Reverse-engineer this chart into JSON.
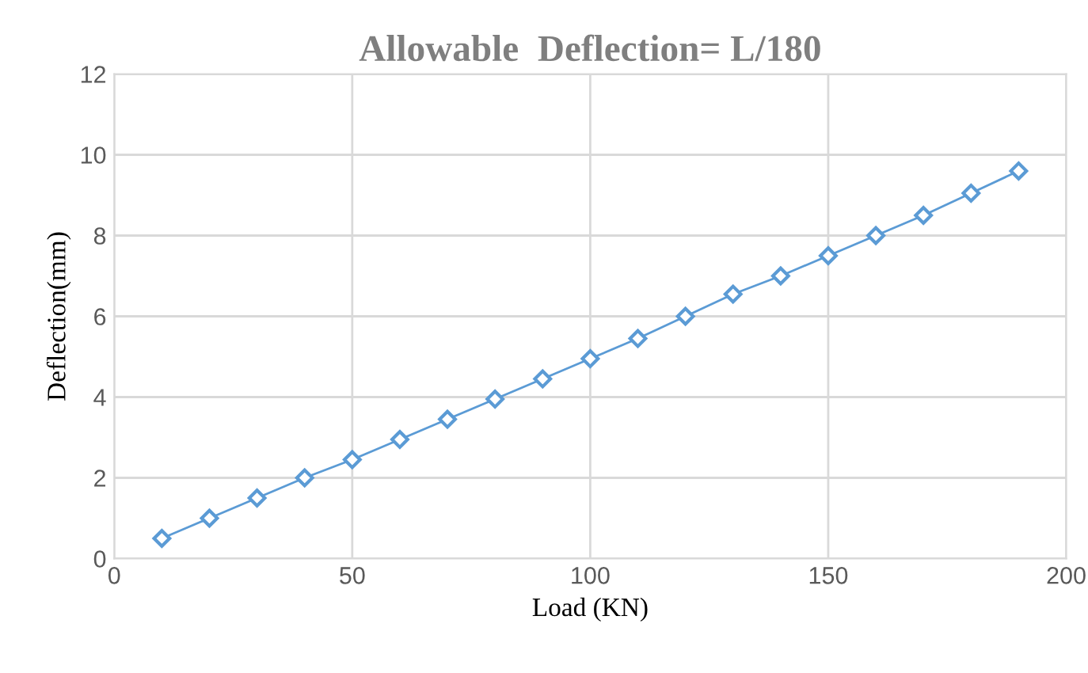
{
  "chart_data": {
    "type": "line",
    "title": "Allowable  Deflection= L/180",
    "xlabel": "Load (KN)",
    "ylabel": "Deflection(mm)",
    "x": [
      10,
      20,
      30,
      40,
      50,
      60,
      70,
      80,
      90,
      100,
      110,
      120,
      130,
      140,
      150,
      160,
      170,
      180,
      190
    ],
    "series": [
      {
        "color": "#5b9bd5",
        "values": [
          0.5,
          1.0,
          1.5,
          2.0,
          2.45,
          2.95,
          3.45,
          3.95,
          4.45,
          4.95,
          5.45,
          6.0,
          6.55,
          7.0,
          7.5,
          8.0,
          8.5,
          9.05,
          9.6
        ]
      }
    ],
    "xlim": [
      0,
      200
    ],
    "xticks": [
      0,
      50,
      100,
      150,
      200
    ],
    "ylim": [
      0,
      12
    ],
    "yticks": [
      0,
      2,
      4,
      6,
      8,
      10,
      12
    ],
    "grid": true,
    "legend": false,
    "marker": "diamond",
    "line_style": "solid"
  }
}
